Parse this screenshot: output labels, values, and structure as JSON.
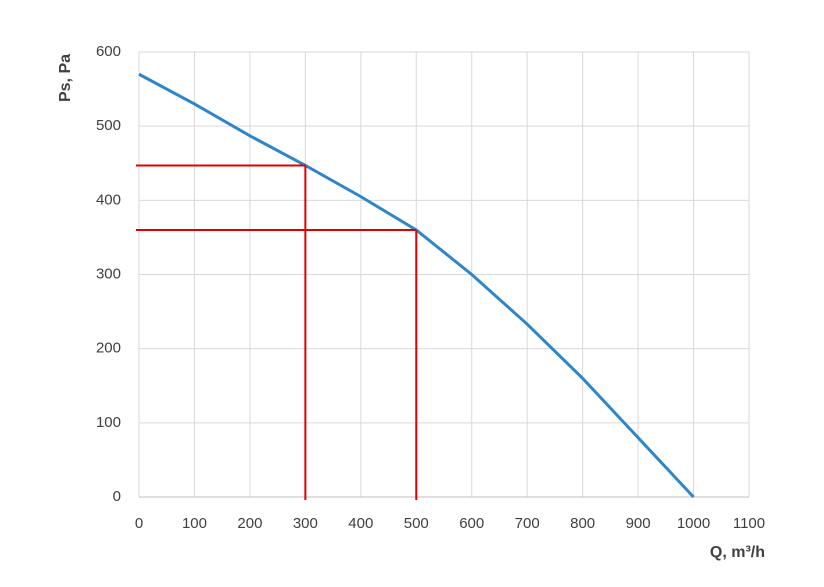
{
  "chart_data": {
    "type": "line",
    "x_label": "Q, m³/h",
    "y_label": "Ps, Pa",
    "x": [
      0,
      100,
      200,
      300,
      400,
      500,
      600,
      700,
      800,
      900,
      1000
    ],
    "series": [
      {
        "color": "#2e86c8",
        "values": [
          570,
          530,
          487,
          447,
          405,
          360,
          300,
          233,
          160,
          80,
          0
        ]
      }
    ],
    "reference_points": {
      "color": "#e00000",
      "x": [
        300,
        500
      ],
      "y": [
        447,
        360
      ]
    },
    "xlim": [
      0,
      1100
    ],
    "xticks": [
      0,
      100,
      200,
      300,
      400,
      500,
      600,
      700,
      800,
      900,
      1000,
      1100
    ],
    "ylim": [
      0,
      600
    ],
    "yticks": [
      0,
      100,
      200,
      300,
      400,
      500,
      600
    ],
    "grid": true
  }
}
